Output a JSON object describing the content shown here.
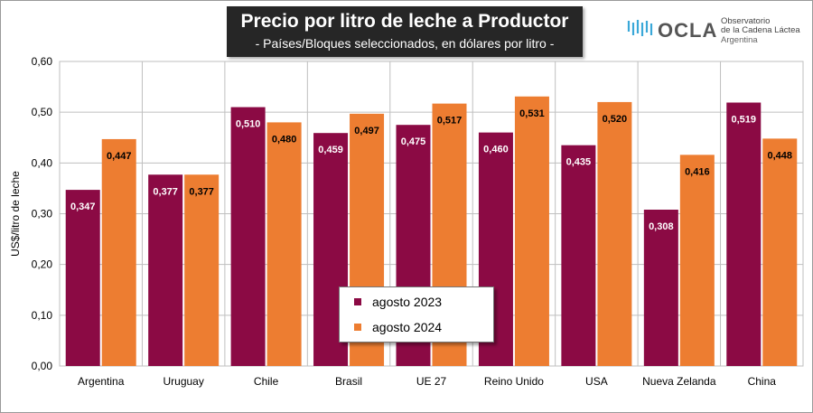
{
  "header": {
    "title": "Precio por litro de leche a Productor",
    "subtitle": "- Países/Bloques seleccionados, en dólares por litro -"
  },
  "logo": {
    "name": "OCLA",
    "line1": "Observatorio",
    "line2": "de la Cadena Láctea",
    "line3": "Argentina",
    "color": "#3aa8d8"
  },
  "chart_data": {
    "type": "bar",
    "title": "Precio por litro de leche a Productor",
    "subtitle": "- Países/Bloques seleccionados, en dólares por litro -",
    "ylabel": "US$/litro de leche",
    "xlabel": "",
    "categories": [
      "Argentina",
      "Uruguay",
      "Chile",
      "Brasil",
      "UE 27",
      "Reino Unido",
      "USA",
      "Nueva Zelanda",
      "China"
    ],
    "series": [
      {
        "name": "agosto 2023",
        "color": "#8b0a44",
        "values": [
          0.347,
          0.377,
          0.51,
          0.459,
          0.475,
          0.46,
          0.435,
          0.308,
          0.519
        ],
        "labels": [
          "0,347",
          "0,377",
          "0,510",
          "0,459",
          "0,475",
          "0,460",
          "0,435",
          "0,308",
          "0,519"
        ]
      },
      {
        "name": "agosto 2024",
        "color": "#ed7d31",
        "values": [
          0.447,
          0.377,
          0.48,
          0.497,
          0.517,
          0.531,
          0.52,
          0.416,
          0.448
        ],
        "labels": [
          "0,447",
          "0,377",
          "0,480",
          "0,497",
          "0,517",
          "0,531",
          "0,520",
          "0,416",
          "0,448"
        ]
      }
    ],
    "ylim": [
      0,
      0.6
    ],
    "yticks": [
      0,
      0.1,
      0.2,
      0.3,
      0.4,
      0.5,
      0.6
    ],
    "ytick_labels": [
      "0,00",
      "0,10",
      "0,20",
      "0,30",
      "0,40",
      "0,50",
      "0,60"
    ],
    "grid": true,
    "legend_position": "bottom-center"
  }
}
